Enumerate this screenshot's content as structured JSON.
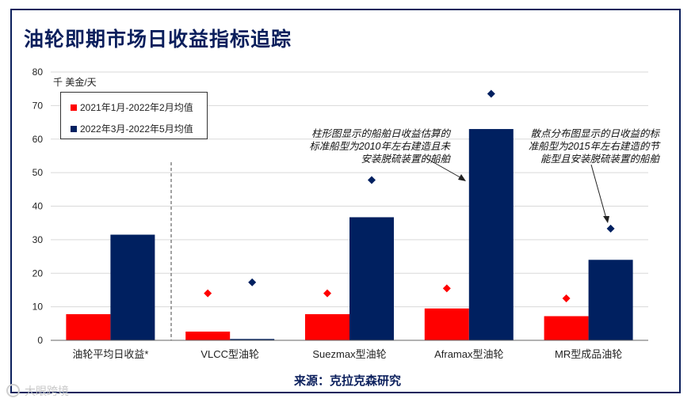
{
  "title": "油轮即期市场日收益指标追踪",
  "source": "来源：克拉克森研究",
  "watermark": "大眼跨境",
  "chart_data": {
    "type": "bar",
    "title": "油轮即期市场日收益指标追踪",
    "ylabel": "千 美金/天",
    "ylim": [
      0,
      80
    ],
    "yticks": [
      0,
      10,
      20,
      30,
      40,
      50,
      60,
      70,
      80
    ],
    "grid": true,
    "legend_position": "top-left",
    "categories": [
      "油轮平均日收益*",
      "VLCC型油轮",
      "Suezmax型油轮",
      "Aframax型油轮",
      "MR型成品油轮"
    ],
    "series": [
      {
        "name": "2021年1月-2022年2月均值",
        "color": "#ff0000",
        "values": [
          7.8,
          2.6,
          7.8,
          9.5,
          7.2
        ]
      },
      {
        "name": "2022年3月-2022年5月均值",
        "color": "#002060",
        "values": [
          31.5,
          0.4,
          36.7,
          63.0,
          24.0
        ]
      }
    ],
    "scatter_series": [
      {
        "of": "2021年1月-2022年2月均值",
        "color": "#ff0000",
        "values": [
          null,
          14.0,
          14.0,
          15.5,
          12.5
        ]
      },
      {
        "of": "2022年3月-2022年5月均值",
        "color": "#002060",
        "values": [
          null,
          17.3,
          47.8,
          73.5,
          33.3
        ]
      }
    ],
    "annotations": [
      {
        "text": "柱形图显示的船舶日收益估算的标准船型为2010年左右建造且未安装脱硫装置的船舶",
        "lines": [
          "柱形图显示的船舶日收益估算的",
          "标准船型为2010年左右建造且未",
          "安装脱硫装置的船舶"
        ]
      },
      {
        "text": "散点分布图显示的日收益的标准船型为2015年左右建造的节能型且安装脱硫装置的船舶",
        "lines": [
          "散点分布图显示的日收益的标",
          "准船型为2015年左右建造的节",
          "能型且安装脱硫装置的船舶"
        ]
      }
    ]
  }
}
